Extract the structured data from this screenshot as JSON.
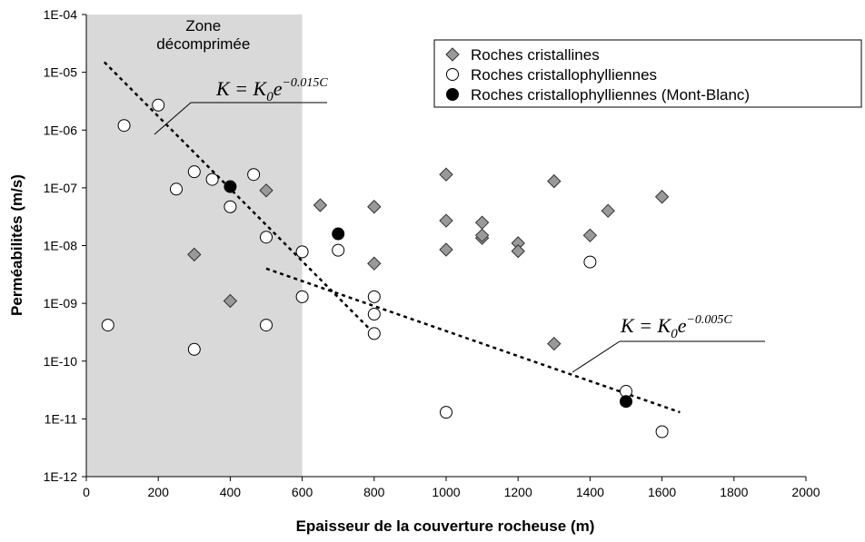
{
  "chart_data": {
    "type": "scatter",
    "x_label": "Epaisseur de la couverture rocheuse (m)",
    "y_label": "Perméabilités (m/s)",
    "log_y": true,
    "xlim": [
      0,
      2000
    ],
    "xticks": [
      0,
      200,
      400,
      600,
      800,
      1000,
      1200,
      1400,
      1600,
      1800,
      2000
    ],
    "ylim": [
      1e-12,
      0.0001
    ],
    "yticks": [
      {
        "value": 1e-12,
        "label": "1E-12"
      },
      {
        "value": 1e-11,
        "label": "1E-11"
      },
      {
        "value": 1e-10,
        "label": "1E-10"
      },
      {
        "value": 1e-09,
        "label": "1E-09"
      },
      {
        "value": 1e-08,
        "label": "1E-08"
      },
      {
        "value": 1e-07,
        "label": "1E-07"
      },
      {
        "value": 1e-06,
        "label": "1E-06"
      },
      {
        "value": 1e-05,
        "label": "1E-05"
      },
      {
        "value": 0.0001,
        "label": "1E-04"
      }
    ],
    "zone": {
      "label": [
        "Zone",
        "décomprimée"
      ],
      "x": [
        0,
        600
      ],
      "color": "#d9d9d9"
    },
    "legend": "top-right",
    "series": [
      {
        "name": "Roches cristallines",
        "marker": "diamond",
        "color": "#999999",
        "x": [
          500,
          300,
          400,
          650,
          800,
          800,
          1000,
          1000,
          1000,
          1100,
          1100,
          1100,
          1200,
          1200,
          1300,
          1300,
          1450,
          1400,
          1600
        ],
        "values": [
          9e-08,
          7e-09,
          1.1e-09,
          5e-08,
          4.7e-08,
          4.9e-09,
          1.7e-07,
          2.7e-08,
          8.5e-09,
          2.5e-08,
          1.35e-08,
          1.5e-08,
          1.1e-08,
          8e-09,
          1.3e-07,
          2e-10,
          4e-08,
          1.5e-08,
          7e-08
        ]
      },
      {
        "name": "Roches cristallophylliennes",
        "marker": "circle",
        "color": "#ffffff",
        "x": [
          60,
          105,
          200,
          250,
          300,
          350,
          400,
          465,
          500,
          600,
          600,
          500,
          300,
          700,
          800,
          800,
          800,
          1000,
          1400,
          1500,
          1600
        ],
        "values": [
          4.2e-10,
          1.2e-06,
          2.7e-06,
          9.5e-08,
          1.9e-07,
          1.4e-07,
          4.7e-08,
          1.7e-07,
          1.4e-08,
          7.8e-09,
          1.3e-09,
          4.2e-10,
          1.6e-10,
          8.3e-09,
          1.3e-09,
          6.5e-10,
          3e-10,
          1.3e-11,
          5.2e-09,
          3e-11,
          6e-12
        ]
      },
      {
        "name": "Roches cristallophylliennes (Mont-Blanc)",
        "marker": "circle",
        "color": "#000000",
        "x": [
          400,
          700,
          1500
        ],
        "values": [
          1.05e-07,
          1.6e-08,
          2e-11
        ]
      }
    ],
    "trend_lines": [
      {
        "x": [
          50,
          800
        ],
        "values": [
          1.5e-05,
          3e-10
        ]
      },
      {
        "x": [
          500,
          1650
        ],
        "values": [
          4e-09,
          1.3e-11
        ]
      }
    ],
    "equations": [
      {
        "lhs": "K = K",
        "sub": "0",
        "base": "e",
        "exp": "−0.015C"
      },
      {
        "lhs": "K = K",
        "sub": "0",
        "base": "e",
        "exp": "−0.005C"
      }
    ]
  }
}
